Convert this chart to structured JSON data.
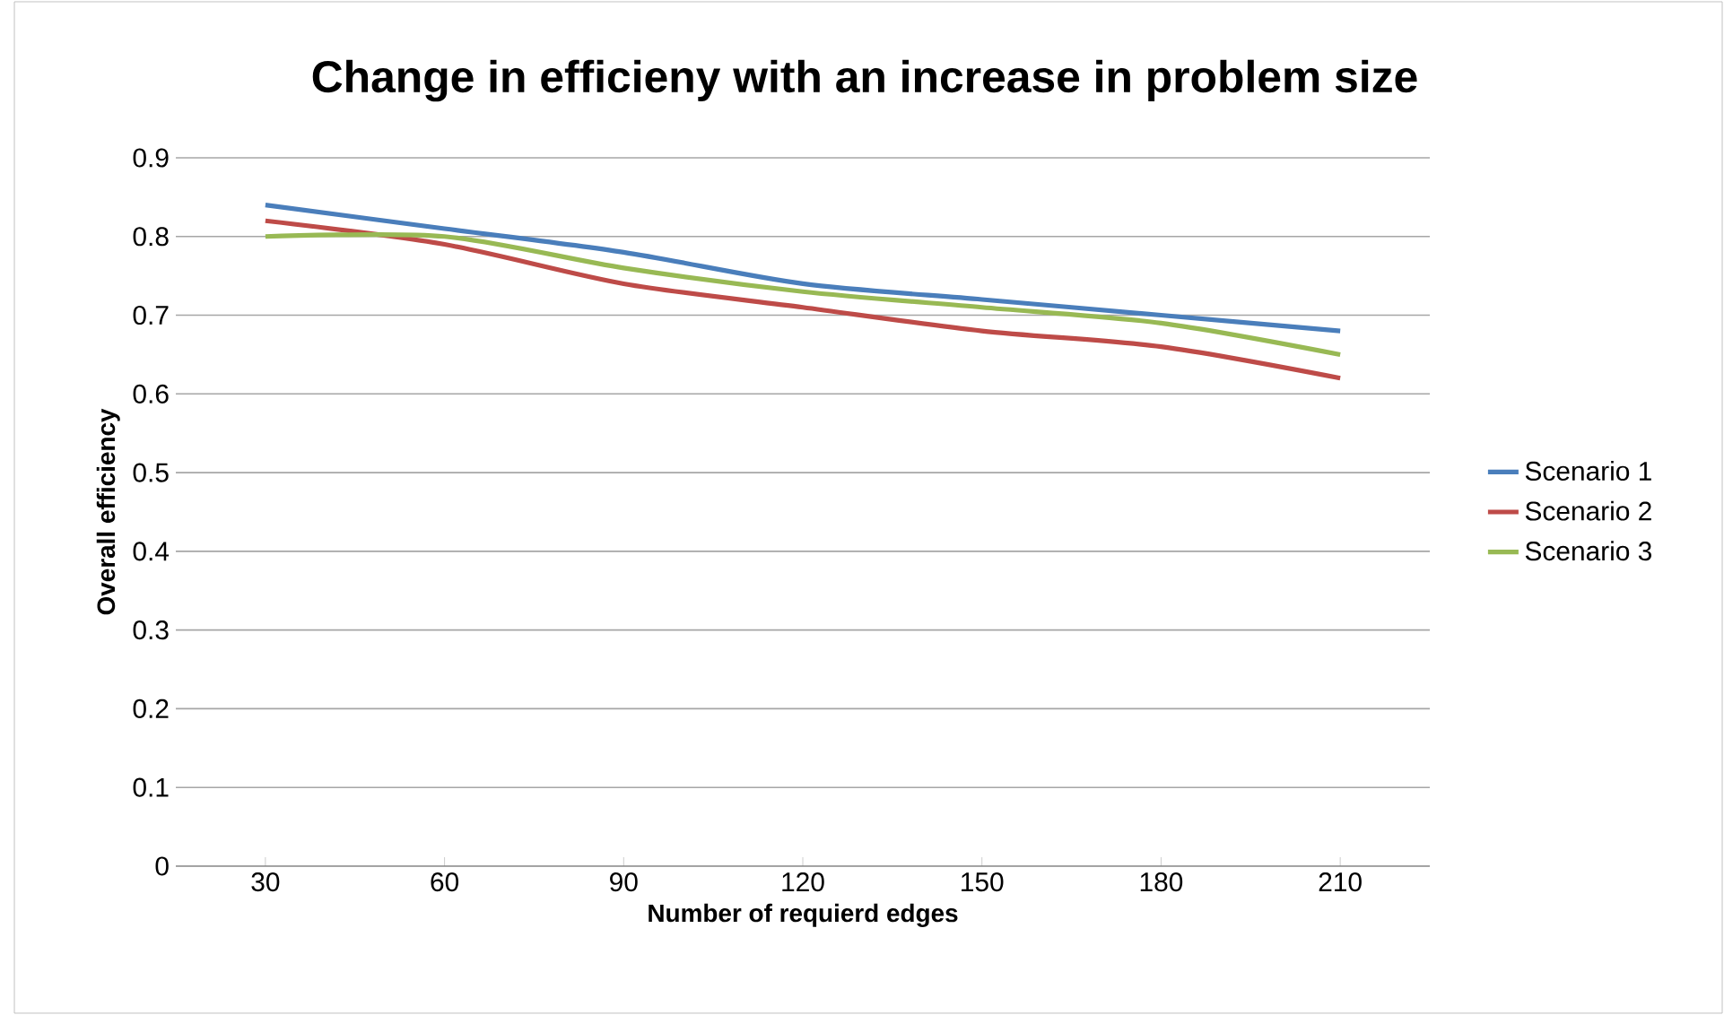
{
  "chart_data": {
    "type": "line",
    "title": "Change in efficieny with an increase in problem size",
    "xlabel": "Number of requierd edges",
    "ylabel": "Overall efficiency",
    "categories": [
      "30",
      "60",
      "90",
      "120",
      "150",
      "180",
      "210"
    ],
    "series": [
      {
        "name": "Scenario 1",
        "color": "#4a7ebb",
        "values": [
          0.84,
          0.81,
          0.78,
          0.74,
          0.72,
          0.7,
          0.68
        ]
      },
      {
        "name": "Scenario 2",
        "color": "#be4b48",
        "values": [
          0.82,
          0.79,
          0.74,
          0.71,
          0.68,
          0.66,
          0.62
        ]
      },
      {
        "name": "Scenario 3",
        "color": "#98b954",
        "values": [
          0.8,
          0.8,
          0.76,
          0.73,
          0.71,
          0.69,
          0.65
        ]
      }
    ],
    "ylim": [
      0,
      0.9
    ],
    "yticks": [
      0,
      0.1,
      0.2,
      0.3,
      0.4,
      0.5,
      0.6,
      0.7,
      0.8,
      0.9
    ],
    "grid": "y",
    "legend": "right",
    "marker": "none",
    "line_style": "solid"
  }
}
